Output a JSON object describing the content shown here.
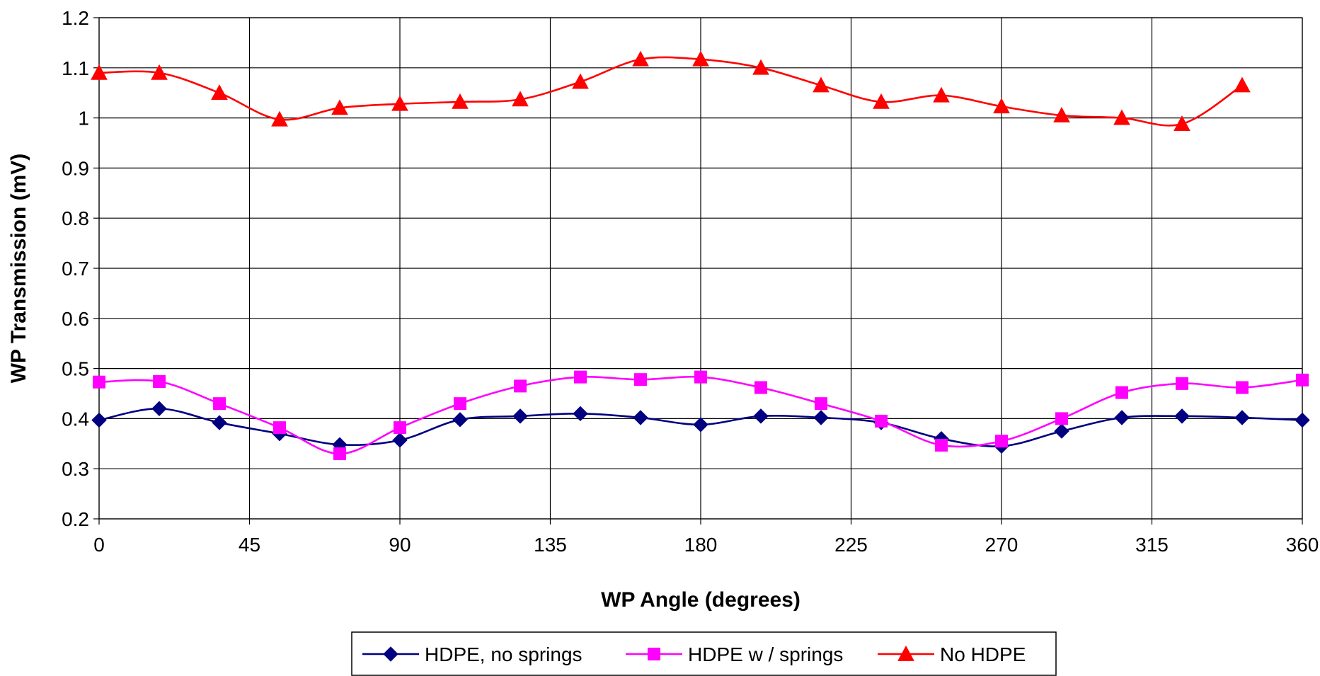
{
  "chart_data": {
    "type": "line",
    "xlabel": "WP Angle (degrees)",
    "ylabel": "WP Transmission (mV)",
    "xlim": [
      0,
      360
    ],
    "ylim": [
      0.2,
      1.2
    ],
    "x_ticks": [
      "0",
      "45",
      "90",
      "135",
      "180",
      "225",
      "270",
      "315",
      "360"
    ],
    "y_ticks": [
      "0.2",
      "0.3",
      "0.4",
      "0.5",
      "0.6",
      "0.7",
      "0.8",
      "0.9",
      "1",
      "1.1",
      "1.2"
    ],
    "grid": true,
    "legend_position": "bottom",
    "series": [
      {
        "name": "HDPE, no springs",
        "color": "#000080",
        "marker": "diamond",
        "x": [
          0,
          18,
          36,
          54,
          72,
          90,
          108,
          126,
          144,
          162,
          180,
          198,
          216,
          234,
          252,
          270,
          288,
          306,
          324,
          342,
          360
        ],
        "y": [
          0.397,
          0.42,
          0.392,
          0.37,
          0.348,
          0.357,
          0.398,
          0.405,
          0.41,
          0.402,
          0.388,
          0.405,
          0.402,
          0.392,
          0.36,
          0.345,
          0.375,
          0.402,
          0.405,
          0.402,
          0.397
        ]
      },
      {
        "name": "HDPE w / springs",
        "color": "#FF00FF",
        "marker": "square",
        "x": [
          0,
          18,
          36,
          54,
          72,
          90,
          108,
          126,
          144,
          162,
          180,
          198,
          216,
          234,
          252,
          270,
          288,
          306,
          324,
          342,
          360
        ],
        "y": [
          0.473,
          0.474,
          0.43,
          0.382,
          0.33,
          0.382,
          0.43,
          0.465,
          0.483,
          0.478,
          0.483,
          0.462,
          0.43,
          0.395,
          0.347,
          0.355,
          0.4,
          0.452,
          0.47,
          0.462,
          0.477
        ]
      },
      {
        "name": "No HDPE",
        "color": "#FF0000",
        "marker": "triangle",
        "x": [
          0,
          18,
          36,
          54,
          72,
          90,
          108,
          126,
          144,
          162,
          180,
          198,
          216,
          234,
          252,
          270,
          288,
          306,
          324,
          342
        ],
        "y": [
          1.09,
          1.09,
          1.05,
          0.997,
          1.02,
          1.028,
          1.032,
          1.037,
          1.072,
          1.117,
          1.117,
          1.1,
          1.065,
          1.032,
          1.045,
          1.023,
          1.005,
          1.0,
          0.988,
          1.065
        ]
      }
    ]
  }
}
